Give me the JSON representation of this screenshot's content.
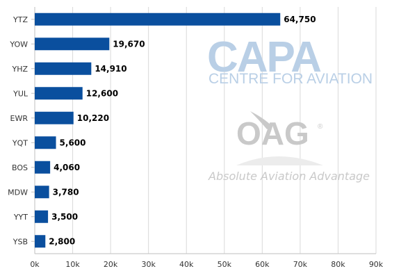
{
  "chart_data": {
    "type": "bar",
    "orientation": "horizontal",
    "categories": [
      "YTZ",
      "YOW",
      "YHZ",
      "YUL",
      "EWR",
      "YQT",
      "BOS",
      "MDW",
      "YYT",
      "YSB"
    ],
    "values": [
      64750,
      19670,
      14910,
      12600,
      10220,
      5600,
      4060,
      3780,
      3500,
      2800
    ],
    "value_labels": [
      "64,750",
      "19,670",
      "14,910",
      "12,600",
      "10,220",
      "5,600",
      "4,060",
      "3,780",
      "3,500",
      "2,800"
    ],
    "xticks": [
      0,
      10000,
      20000,
      30000,
      40000,
      50000,
      60000,
      70000,
      80000,
      90000
    ],
    "xtick_labels": [
      "0k",
      "10k",
      "20k",
      "30k",
      "40k",
      "50k",
      "60k",
      "70k",
      "80k",
      "90k"
    ],
    "xlim": [
      0,
      90000
    ],
    "grid": "vertical",
    "bar_color": "#0a4f9e",
    "title": "",
    "xlabel": "",
    "ylabel": ""
  },
  "watermarks": {
    "capa_logo": "CAPA",
    "capa_subtitle": "CENTRE FOR AVIATION",
    "oag_logo": "OAG",
    "oag_registered": "®",
    "oag_tagline": "Absolute Aviation Advantage",
    "capa_color": "#b9cfe6",
    "oag_color": "#c9c9c9"
  }
}
